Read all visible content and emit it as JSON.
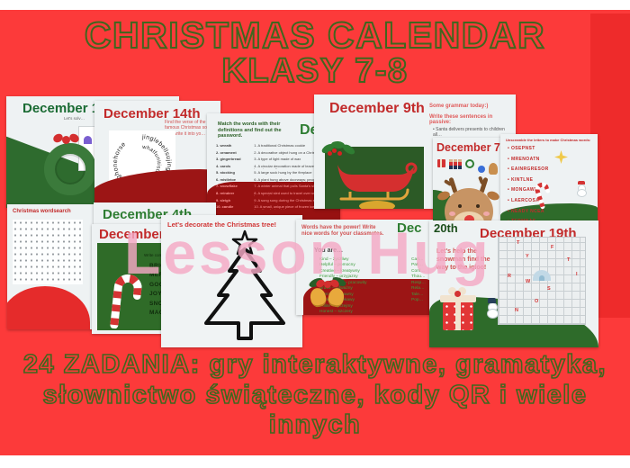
{
  "page": {
    "title_line1": "CHRISTMAS CALENDAR",
    "title_line2": "KLASY 7-8",
    "tagline_line1": "24 ZADANIA: gry interaktywne, gramatyka,",
    "tagline_line2": "słownictwo świąteczne, kody QR i wiele innych",
    "watermark": "Lesson Hug"
  },
  "colors": {
    "background": "#fc3a3a",
    "title_outline_green": "#40661e",
    "watermark_pink": "#f5a9c5",
    "slide_red_title": "#c22a2a",
    "slide_green_title": "#2e7d32",
    "maroon_accent": "#9c1515",
    "panel_green": "#2d6128"
  },
  "slides": {
    "dec15": {
      "title": "December 15th",
      "subtitle": "Let's solv…",
      "rebus_r1a": "a=e",
      "rebus_r1b": "b-",
      "rebus_r2a": "+'+",
      "rebus_r2b": "-b"
    },
    "dec14": {
      "title": "December 14th",
      "task": "Find the verse of the famous Christmas song and write it into yo…",
      "spiral_outer": "jinglebellsujinglebellsbtocridesleighonehorse",
      "spiral_inner": "whatfunitistorideopen"
    },
    "password": {
      "title_fragment": "Dece",
      "task": "Match the words with their definitions and find out the password.",
      "rows": [
        {
          "w": "1. wreath",
          "d": "1. A traditional Christmas cookie"
        },
        {
          "w": "2. ornament",
          "d": "2. A decorative object hung on a Christmas tree"
        },
        {
          "w": "3. gingerbread",
          "d": "3. A type of light made of wax"
        },
        {
          "w": "4. carols",
          "d": "4. A circular decoration made of leaves, pine branches, or flowers"
        },
        {
          "w": "5. stocking",
          "d": "5. A large sock hung by the fireplace"
        },
        {
          "w": "6. mistletoe",
          "d": "6. A plant hung above doorways; people kiss underneath it"
        },
        {
          "w": "7. snowflake",
          "d": "7. A winter animal that pulls Santa's sleigh"
        },
        {
          "w": "8. reindeer",
          "d": "8. A special sled used to travel over snow, pulled by animals"
        },
        {
          "w": "9. sleigh",
          "d": "9. A song sung during the Christmas season, often in groups"
        },
        {
          "w": "10. candle",
          "d": "10. A small, unique piece of frozen ice that falls from the sky in winter"
        }
      ]
    },
    "dec9": {
      "title": "December 9th",
      "grammar_intro": "Some grammar today:)",
      "grammar_task": "Write these sentences in passive:",
      "bullet1": "• Santa delivers presents to children all…"
    },
    "dec7": {
      "title": "December 7th"
    },
    "unscramble": {
      "heading": "Unscramble the letters to make Christmas words:",
      "items": [
        "OSEPNST",
        "MRENOATN",
        "EAINRGRESOR",
        "KINTLNE",
        "MONGAWN",
        "LAERCOSA",
        "NEADY NCEA",
        "TERMNAS"
      ]
    },
    "wordsearch": {
      "title": "Christmas wordsearch"
    },
    "dec4": {
      "title": "December 4th"
    },
    "dec5": {
      "title": "December 5th",
      "grammar_line1": "Grammar fir…",
      "grammar_line2": "Write comparative and superlative",
      "adjectives": [
        "BRIGHT-",
        "MERRY-",
        "GOOD-",
        "JOYFUL-",
        "SNOWY-",
        "MAGICAL-"
      ]
    },
    "tree": {
      "title": "Let's decorate the Christmas tree!"
    },
    "nice_words": {
      "title_fragment": "Dec",
      "task": "Words have the power! Write nice words for your classmates.",
      "prompt": "You are…",
      "column1": [
        "Kind – życzliwy",
        "Helpful – pomocny",
        "Creative – kreatywny",
        "Friendly – przyjazny",
        "Hardworking – pracowity",
        "Brave – odważny",
        "Funny – zabawny",
        "Curious – ciekawy",
        "Polite – uprzejmy",
        "Honest – szczery"
      ],
      "column2": [
        "Cari…",
        "Pati…",
        "Conf…",
        "Thou…",
        "Resp…",
        "Rela…",
        "Tale…",
        "Pop…"
      ]
    },
    "dec20": {
      "title_fragment": "20th"
    },
    "dec19": {
      "title": "December 19th",
      "task": "Let's help the snowman find the way to the igloo!",
      "maze_letters": [
        "T",
        "F",
        "Y",
        "T",
        "I",
        "R",
        "W",
        "S",
        "O",
        "N"
      ]
    }
  }
}
